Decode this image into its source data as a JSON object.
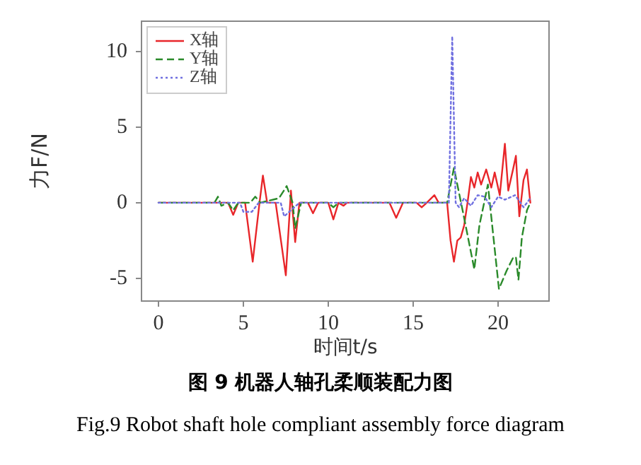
{
  "chart_data": {
    "type": "line",
    "title": "图 9 机器人轴孔柔顺装配力图",
    "subtitle": "Fig.9  Robot shaft hole compliant assembly force diagram",
    "xlabel": "时间t/s",
    "ylabel": "力F/N",
    "xlim": [
      -1,
      23
    ],
    "ylim": [
      -6.5,
      12
    ],
    "xticks": [
      0,
      5,
      10,
      15,
      20
    ],
    "yticks": [
      -5,
      0,
      5,
      10
    ],
    "grid": false,
    "legend": "top left",
    "marker": "none",
    "series": [
      {
        "name": "X轴",
        "color": "#e8262a",
        "line_style": "solid",
        "x": [
          0,
          4.1,
          4.4,
          4.7,
          5.1,
          5.55,
          5.95,
          6.15,
          6.4,
          6.9,
          7.5,
          7.8,
          8.05,
          8.3,
          8.8,
          9.1,
          9.4,
          10.0,
          10.3,
          10.6,
          10.9,
          11.1,
          13.6,
          14.0,
          14.4,
          15.2,
          15.5,
          15.8,
          16.25,
          16.5,
          17.0,
          17.2,
          17.4,
          17.6,
          17.8,
          18.0,
          18.2,
          18.4,
          18.6,
          18.8,
          19.0,
          19.3,
          19.6,
          19.8,
          20.1,
          20.4,
          20.6,
          20.9,
          21.05,
          21.25,
          21.5,
          21.7,
          21.9
        ],
        "values": [
          0,
          0,
          -0.8,
          0,
          0,
          -3.9,
          0,
          1.8,
          0,
          0,
          -4.8,
          0.8,
          -2.6,
          0,
          0,
          -0.7,
          0,
          0,
          -1.1,
          0,
          -0.2,
          0,
          0,
          -1,
          0,
          0,
          -0.3,
          0,
          0.5,
          0,
          0,
          -2.5,
          -3.9,
          -2.5,
          -2.3,
          -1.5,
          0,
          1.7,
          1.0,
          2.0,
          1.2,
          2.2,
          1.0,
          2.0,
          0.5,
          3.9,
          0.8,
          2.3,
          3.1,
          -0.9,
          1.5,
          2.2,
          0
        ]
      },
      {
        "name": "Y轴",
        "color": "#2a8a2a",
        "line_style": "dashed",
        "x": [
          0,
          3.3,
          3.5,
          3.7,
          4.1,
          4.4,
          4.7,
          5.4,
          5.7,
          6.0,
          7.1,
          7.55,
          7.9,
          8.05,
          8.4,
          10.0,
          10.3,
          10.6,
          17.0,
          17.4,
          17.6,
          18.0,
          18.6,
          18.9,
          19.4,
          19.7,
          20.05,
          20.5,
          20.9,
          21.05,
          21.2,
          21.4,
          21.7,
          21.9
        ],
        "values": [
          0,
          0,
          0.4,
          -0.2,
          0,
          -0.5,
          0,
          0,
          0.4,
          0,
          0.3,
          1.1,
          0,
          -1.7,
          0,
          0,
          -0.3,
          0,
          0,
          2.3,
          1.2,
          -1.0,
          -4.4,
          -1.5,
          1.2,
          -2.0,
          -5.7,
          -4.5,
          -3.6,
          -3.6,
          -5.1,
          -2.3,
          -0.5,
          0
        ]
      },
      {
        "name": "Z轴",
        "color": "#7070e0",
        "line_style": "dotted",
        "x": [
          0,
          4.8,
          5.0,
          5.5,
          5.9,
          7.2,
          7.4,
          7.7,
          8.0,
          8.3,
          17.1,
          17.3,
          17.5,
          17.7,
          18.0,
          18.4,
          18.8,
          19.2,
          19.6,
          20.0,
          20.4,
          21.0,
          21.5,
          21.9
        ],
        "values": [
          0,
          0,
          -0.6,
          -0.6,
          0,
          0,
          -0.9,
          -0.6,
          -0.3,
          0,
          0,
          11.0,
          0,
          -0.3,
          0.3,
          -0.2,
          0.5,
          0.4,
          -0.3,
          0.4,
          0.2,
          0.5,
          -0.3,
          0.3
        ]
      }
    ]
  }
}
